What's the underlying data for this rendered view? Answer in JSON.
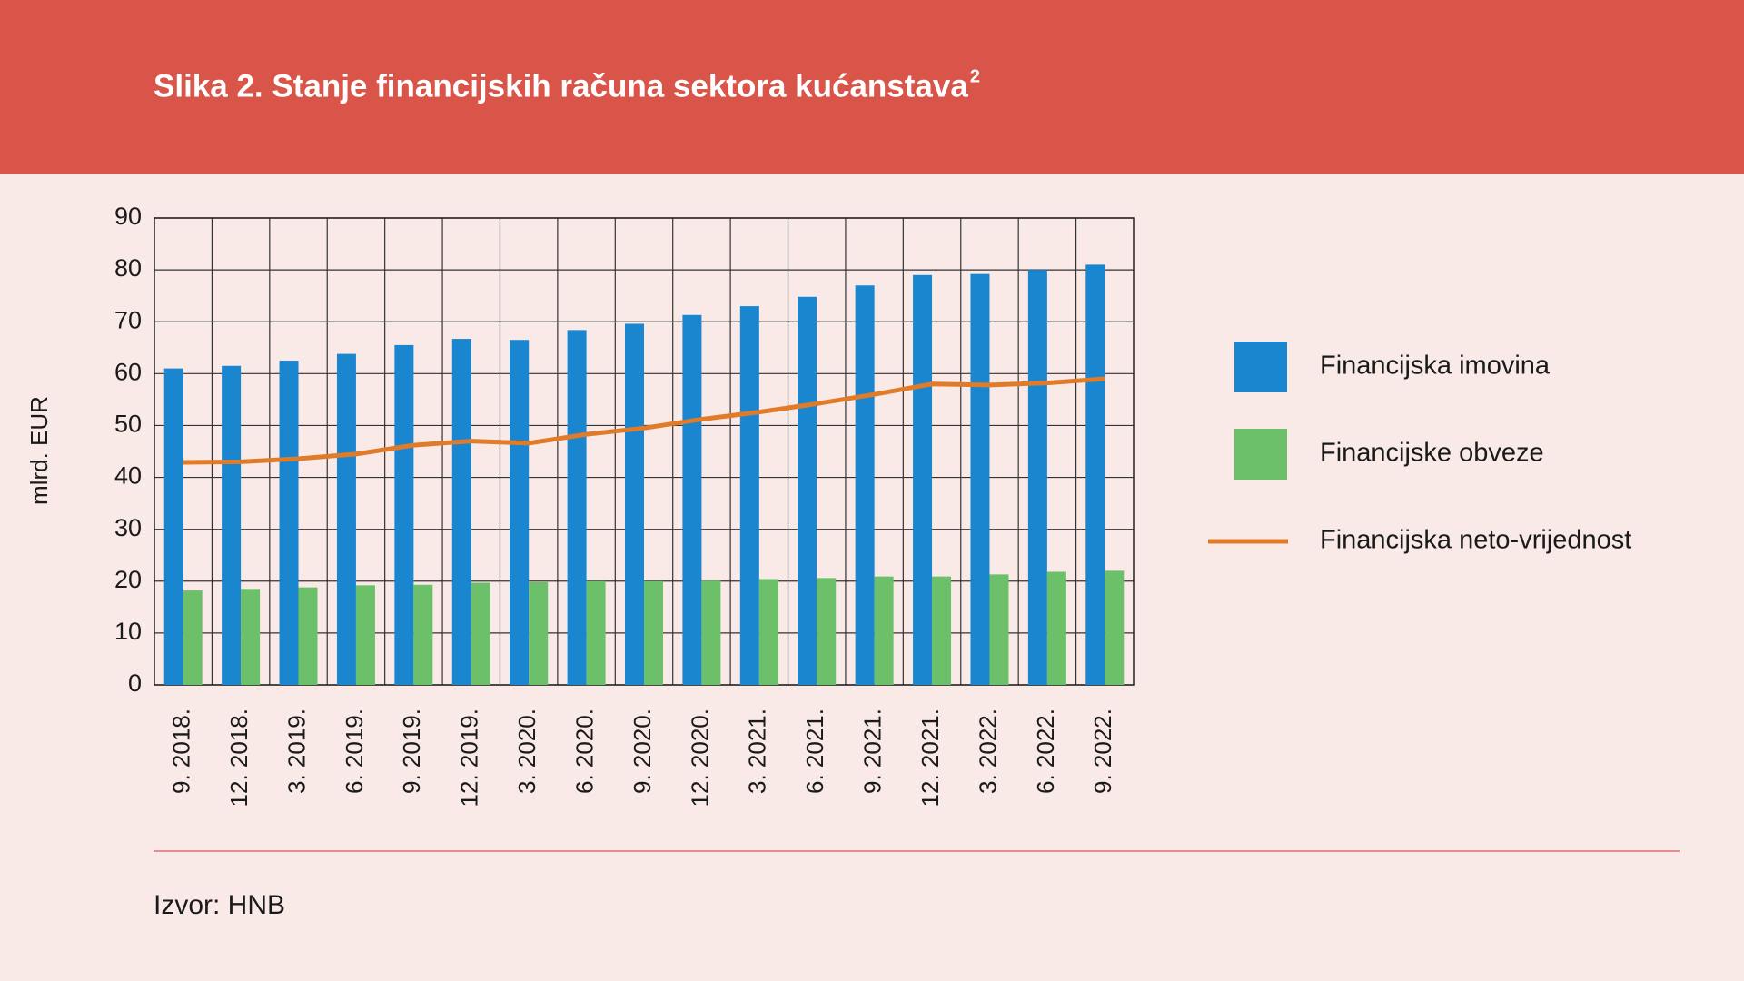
{
  "chart_data": {
    "type": "bar-line",
    "title": "Slika 2. Stanje financijskih računa sektora kućanstava",
    "title_superscript": "2",
    "y_label": "mlrd. EUR",
    "source": "Izvor: HNB",
    "categories": [
      "9. 2018.",
      "12. 2018.",
      "3. 2019.",
      "6. 2019.",
      "9. 2019.",
      "12. 2019.",
      "3. 2020.",
      "6. 2020.",
      "9. 2020.",
      "12. 2020.",
      "3. 2021.",
      "6. 2021.",
      "9. 2021.",
      "12. 2021.",
      "3. 2022.",
      "6. 2022.",
      "9. 2022."
    ],
    "series": [
      {
        "name": "Financijska imovina",
        "color": "#1a86d0",
        "kind": "bar",
        "values": [
          61,
          61.5,
          62.5,
          63.8,
          65.5,
          66.7,
          66.5,
          68.4,
          69.6,
          71.3,
          73,
          74.8,
          77,
          79,
          79.2,
          80,
          81
        ]
      },
      {
        "name": "Financijske obveze",
        "color": "#6cc06a",
        "kind": "bar",
        "values": [
          18.2,
          18.5,
          18.8,
          19.2,
          19.3,
          19.7,
          19.8,
          20,
          20,
          20.1,
          20.4,
          20.6,
          20.9,
          20.9,
          21.3,
          21.8,
          22
        ]
      },
      {
        "name": "Financijska neto-vrijednost",
        "color": "#e07b2a",
        "kind": "line",
        "values": [
          42.9,
          43,
          43.6,
          44.5,
          46.2,
          47,
          46.6,
          48.3,
          49.5,
          51.2,
          52.6,
          54.2,
          56,
          58,
          57.8,
          58.2,
          59
        ]
      }
    ],
    "ylim": [
      0,
      90
    ],
    "yticks": [
      0,
      10,
      20,
      30,
      40,
      50,
      60,
      70,
      80,
      90
    ],
    "grid": true
  }
}
